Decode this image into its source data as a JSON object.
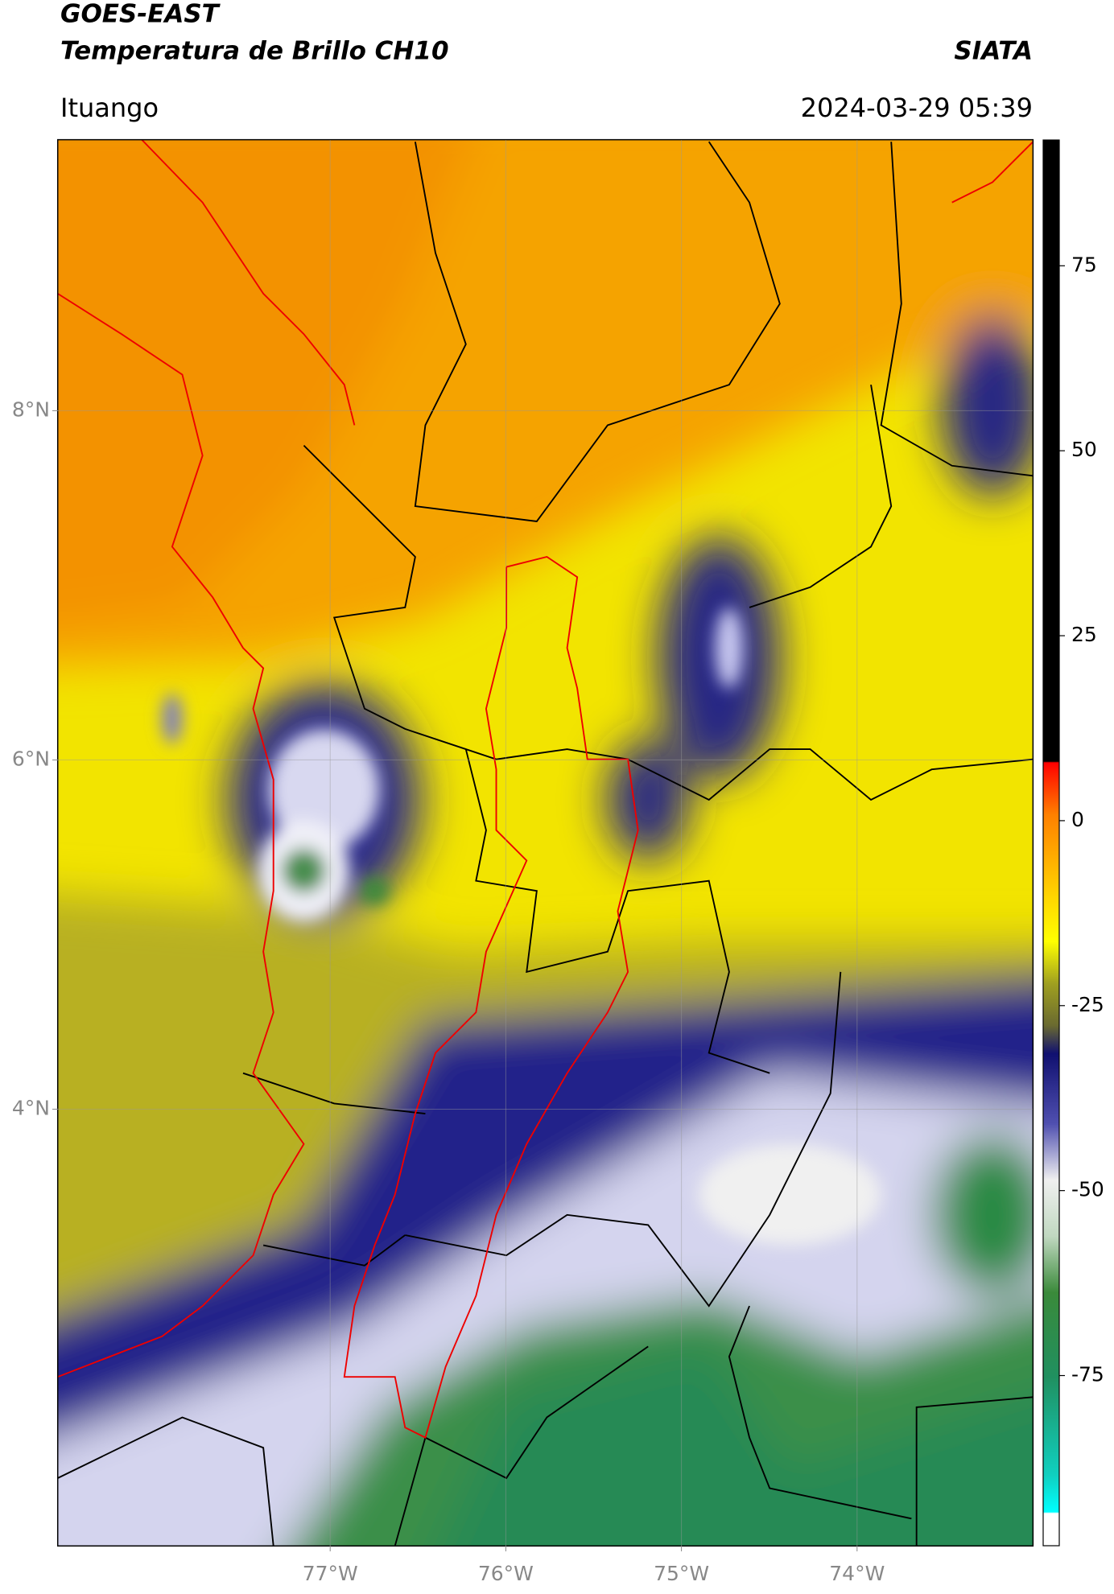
{
  "header": {
    "title": "GOES-EAST",
    "subtitle": "Temperatura de Brillo CH10",
    "org": "SIATA",
    "location": "Ituango",
    "datetime": "2024-03-29 05:39"
  },
  "map": {
    "lonlim": [
      -78.55,
      -73
    ],
    "latlim": [
      1.5,
      9.55
    ],
    "grid": true,
    "lon_ticks": [
      {
        "value": -77,
        "label": "77°W"
      },
      {
        "value": -76,
        "label": "76°W"
      },
      {
        "value": -75,
        "label": "75°W"
      },
      {
        "value": -74,
        "label": "74°W"
      }
    ],
    "lat_ticks": [
      {
        "value": 8,
        "label": "8°N"
      },
      {
        "value": 6,
        "label": "6°N"
      },
      {
        "value": 4,
        "label": "4°N"
      }
    ]
  },
  "colorbar": {
    "ylim": [
      -98,
      92
    ],
    "yticks": [
      75,
      50,
      25,
      0,
      -25,
      -50,
      -75
    ]
  }
}
